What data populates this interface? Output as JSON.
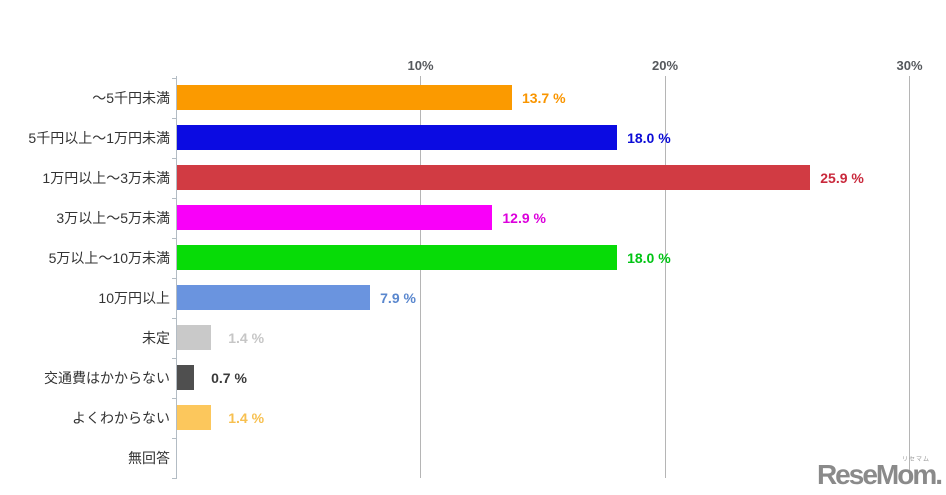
{
  "chart_data": {
    "type": "bar",
    "orientation": "horizontal",
    "title": "",
    "xlabel": "",
    "ylabel": "",
    "xlim": [
      0,
      30.5
    ],
    "grid": true,
    "legend": false,
    "x_ticks": [
      10,
      20,
      30
    ],
    "x_tick_labels": [
      "10%",
      "20%",
      "30%"
    ],
    "categories": [
      "～5千円未満",
      "5千円以上～1万円未満",
      "1万円以上～3万未満",
      "3万以上～5万未満",
      "5万以上～10万未満",
      "10万円以上",
      "未定",
      "交通費はかからない",
      "よくわからない",
      "無回答"
    ],
    "values": [
      13.7,
      18.0,
      25.9,
      12.9,
      18.0,
      7.9,
      1.4,
      0.7,
      1.4,
      0
    ],
    "value_labels": [
      "13.7 %",
      "18.0 %",
      "25.9 %",
      "12.9 %",
      "18.0 %",
      "7.9 %",
      "1.4 %",
      "0.7 %",
      "1.4 %",
      ""
    ],
    "bar_colors": [
      "#fb9a00",
      "#0b0be2",
      "#d13b43",
      "#f900f9",
      "#07db07",
      "#6a94df",
      "#c9c9c9",
      "#4f4f4f",
      "#fcc75c",
      "none"
    ],
    "value_label_colors": [
      "#f99500",
      "#0b0bd6",
      "#c9293c",
      "#dc00dc",
      "#00c414",
      "#5a87ce",
      "#c6c6c6",
      "#3a3a3a",
      "#f7c050",
      "none"
    ]
  },
  "watermark": {
    "text": "ReseMom.",
    "ruby": "リセマム",
    "color": "#8a8a8a"
  }
}
